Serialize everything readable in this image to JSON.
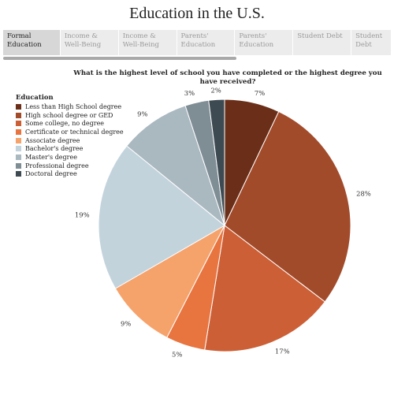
{
  "page": {
    "title": "Education in the U.S."
  },
  "tabs": [
    {
      "label": "Formal\nEducation",
      "active": true
    },
    {
      "label": "Income &\nWell-Being",
      "active": false
    },
    {
      "label": "Income &\nWell-Being",
      "active": false
    },
    {
      "label": "Parents'\nEducation",
      "active": false
    },
    {
      "label": "Parents'\nEducation",
      "active": false
    },
    {
      "label": "Student Debt",
      "active": false
    },
    {
      "label": "Student\nDebt",
      "active": false
    }
  ],
  "chart_data": {
    "type": "pie",
    "title": "What is the highest level of school you have completed or the highest degree you have received?",
    "legend_title": "Education",
    "legend_position": "top-left",
    "slices": [
      {
        "label": "Less than High School degree",
        "value": 7,
        "display": "7%",
        "color": "#6b2f19"
      },
      {
        "label": "High school degree or GED",
        "value": 28,
        "display": "28%",
        "color": "#a24b2b"
      },
      {
        "label": "Some college, no degree",
        "value": 17,
        "display": "17%",
        "color": "#cc5f36"
      },
      {
        "label": "Certificate or technical degree",
        "value": 5,
        "display": "5%",
        "color": "#e8743f"
      },
      {
        "label": "Associate degree",
        "value": 9,
        "display": "9%",
        "color": "#f6a26b"
      },
      {
        "label": "Bachelor's degree",
        "value": 19,
        "display": "19%",
        "color": "#c3d3dc"
      },
      {
        "label": "Master's degree",
        "value": 9,
        "display": "9%",
        "color": "#aab8c0"
      },
      {
        "label": "Professional degree",
        "value": 3,
        "display": "3%",
        "color": "#7f8d95"
      },
      {
        "label": "Doctoral degree",
        "value": 2,
        "display": "2%",
        "color": "#3d4a52"
      }
    ]
  }
}
